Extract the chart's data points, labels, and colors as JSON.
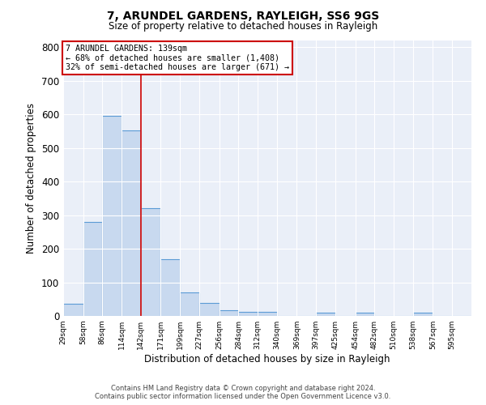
{
  "title1": "7, ARUNDEL GARDENS, RAYLEIGH, SS6 9GS",
  "title2": "Size of property relative to detached houses in Rayleigh",
  "xlabel": "Distribution of detached houses by size in Rayleigh",
  "ylabel": "Number of detached properties",
  "bin_labels": [
    "29sqm",
    "58sqm",
    "86sqm",
    "114sqm",
    "142sqm",
    "171sqm",
    "199sqm",
    "227sqm",
    "256sqm",
    "284sqm",
    "312sqm",
    "340sqm",
    "369sqm",
    "397sqm",
    "425sqm",
    "454sqm",
    "482sqm",
    "510sqm",
    "538sqm",
    "567sqm",
    "595sqm"
  ],
  "bin_edges": [
    29,
    58,
    86,
    114,
    142,
    171,
    199,
    227,
    256,
    284,
    312,
    340,
    369,
    397,
    425,
    454,
    482,
    510,
    538,
    567,
    595
  ],
  "bar_heights": [
    37,
    280,
    595,
    553,
    320,
    168,
    70,
    38,
    18,
    12,
    12,
    0,
    0,
    10,
    0,
    10,
    0,
    0,
    10,
    0,
    0
  ],
  "bar_color": "#c8d9ef",
  "bar_edge_color": "#5b9bd5",
  "red_line_x": 142,
  "annotation_text1": "7 ARUNDEL GARDENS: 139sqm",
  "annotation_text2": "← 68% of detached houses are smaller (1,408)",
  "annotation_text3": "32% of semi-detached houses are larger (671) →",
  "annotation_box_color": "#ffffff",
  "annotation_box_edge": "#cc0000",
  "ylim": [
    0,
    820
  ],
  "yticks": [
    0,
    100,
    200,
    300,
    400,
    500,
    600,
    700,
    800
  ],
  "background_color": "#eaeff8",
  "footer1": "Contains HM Land Registry data © Crown copyright and database right 2024.",
  "footer2": "Contains public sector information licensed under the Open Government Licence v3.0."
}
